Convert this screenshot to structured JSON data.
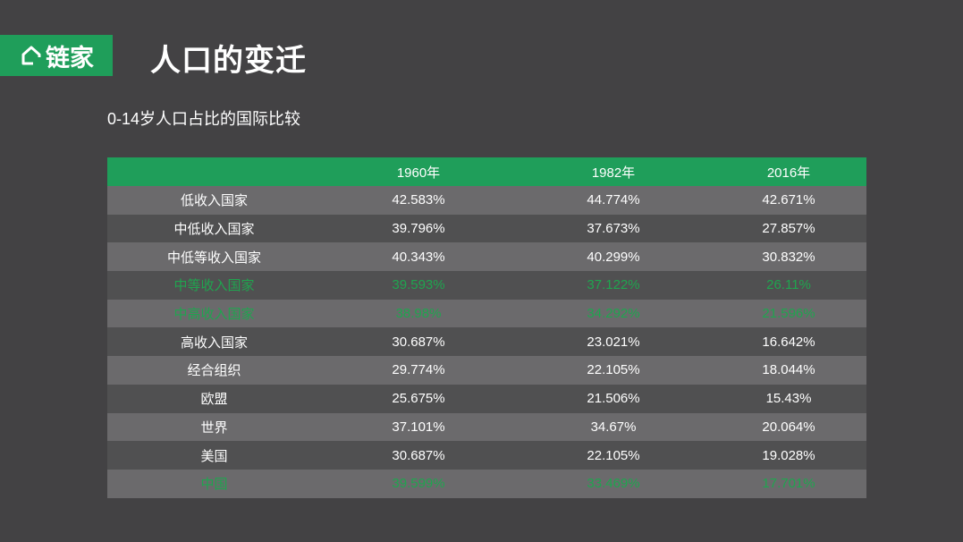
{
  "header": {
    "logo_text": "链家",
    "title": "人口的变迁"
  },
  "subtitle": "0-14岁人口占比的国际比较",
  "colors": {
    "brand": "#1f9e5a",
    "highlight_text": "#1fa54f",
    "background": "#434244"
  },
  "table": {
    "columns": [
      "",
      "1960年",
      "1982年",
      "2016年"
    ],
    "rows": [
      {
        "label": "低收入国家",
        "values": [
          "42.583%",
          "44.774%",
          "42.671%"
        ],
        "highlight": false
      },
      {
        "label": "中低收入国家",
        "values": [
          "39.796%",
          "37.673%",
          "27.857%"
        ],
        "highlight": false
      },
      {
        "label": "中低等收入国家",
        "values": [
          "40.343%",
          "40.299%",
          "30.832%"
        ],
        "highlight": false
      },
      {
        "label": "中等收入国家",
        "values": [
          "39.593%",
          "37.122%",
          "26.11%"
        ],
        "highlight": true
      },
      {
        "label": "中高收入国家",
        "values": [
          "38.98%",
          "34.292%",
          "21.596%"
        ],
        "highlight": true
      },
      {
        "label": "高收入国家",
        "values": [
          "30.687%",
          "23.021%",
          "16.642%"
        ],
        "highlight": false
      },
      {
        "label": "经合组织",
        "values": [
          "29.774%",
          "22.105%",
          "18.044%"
        ],
        "highlight": false
      },
      {
        "label": "欧盟",
        "values": [
          "25.675%",
          "21.506%",
          "15.43%"
        ],
        "highlight": false
      },
      {
        "label": "世界",
        "values": [
          "37.101%",
          "34.67%",
          "20.064%"
        ],
        "highlight": false
      },
      {
        "label": "美国",
        "values": [
          "30.687%",
          "22.105%",
          "19.028%"
        ],
        "highlight": false
      },
      {
        "label": "中国",
        "values": [
          "39.599%",
          "33.469%",
          "17.701%"
        ],
        "highlight": true
      }
    ]
  }
}
